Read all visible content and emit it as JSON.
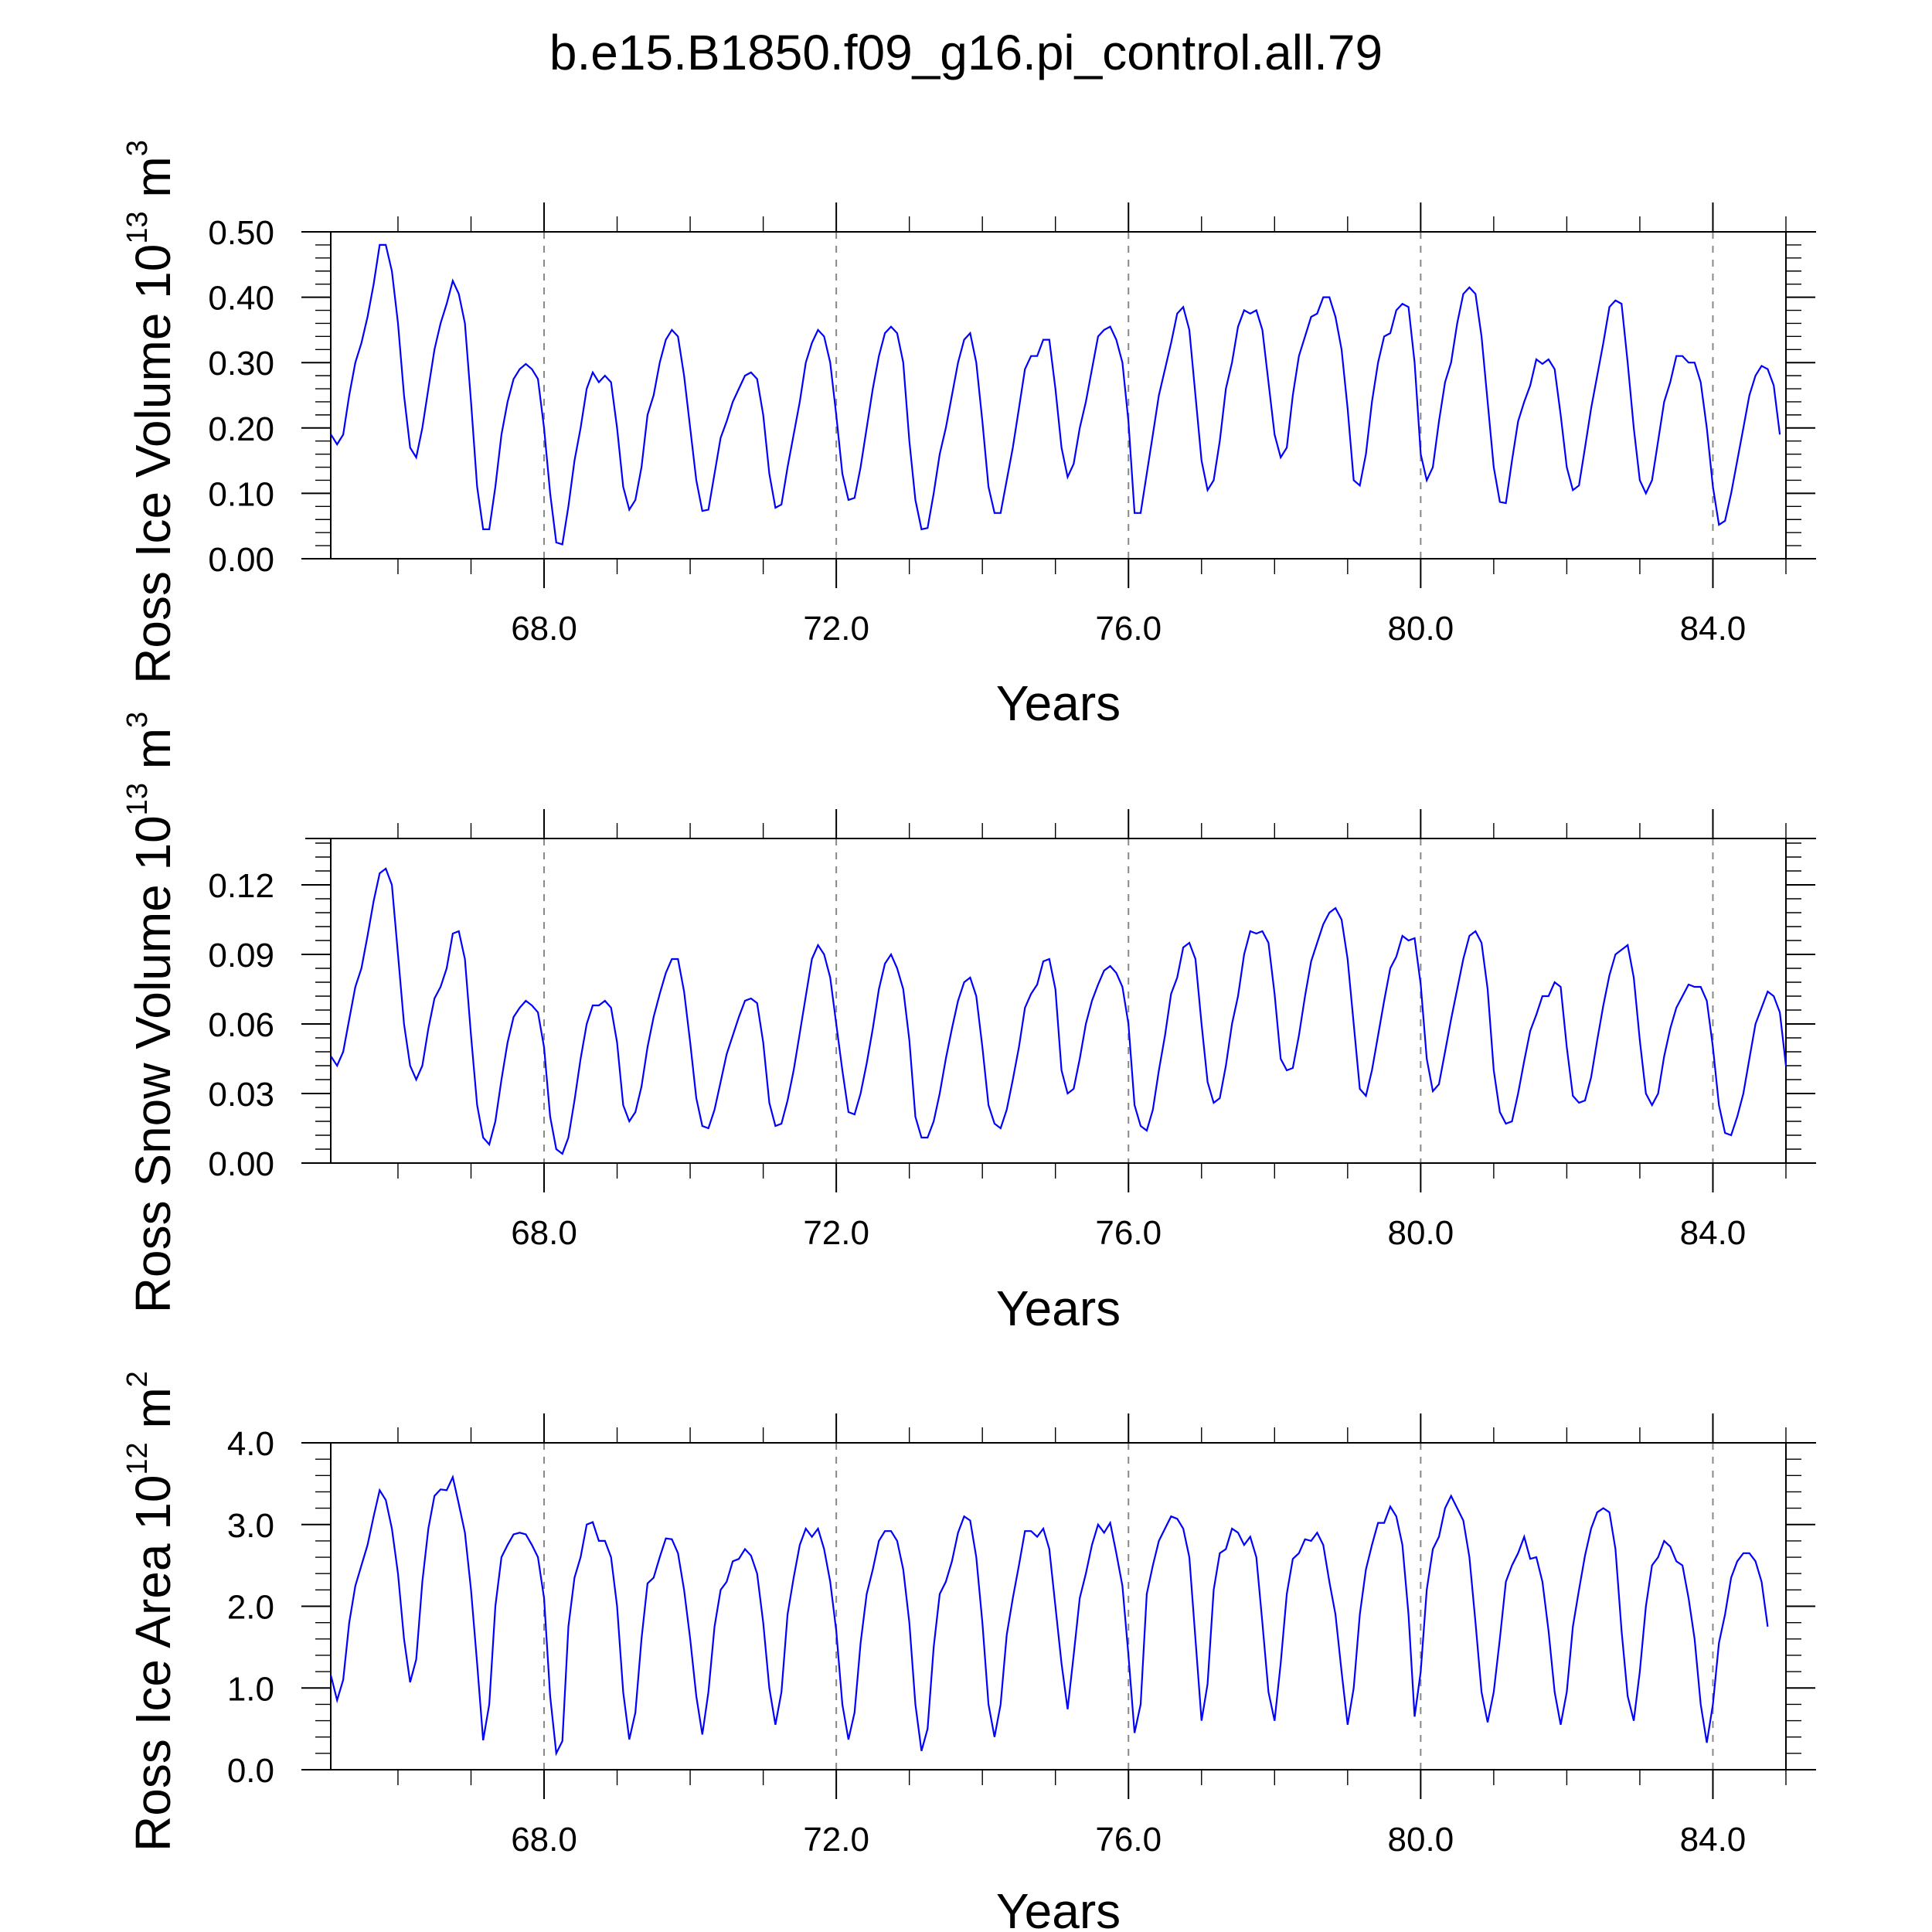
{
  "figure_title": "b.e15.B1850.f09_g16.pi_control.all.79",
  "line_color": "#0000ff",
  "chart_data": [
    {
      "type": "line",
      "xlabel": "Years",
      "ylabel": "Ross Ice Volume 10",
      "ylabel_exp": "13",
      "ylabel_unit": "m",
      "ylabel_unit_exp": "3",
      "xlim": [
        65.08,
        85.0
      ],
      "ylim": [
        0.0,
        0.5
      ],
      "xticks": [
        68,
        72,
        76,
        80,
        84
      ],
      "xtick_labels": [
        "68.0",
        "72.0",
        "76.0",
        "80.0",
        "84.0"
      ],
      "yticks": [
        0,
        0.1,
        0.2,
        0.3,
        0.4,
        0.5
      ],
      "ytick_labels": [
        "0.00",
        "0.10",
        "0.20",
        "0.30",
        "0.40",
        "0.50"
      ],
      "x_start": 65.0833,
      "x_step": 0.0833333,
      "values": [
        0.19,
        0.175,
        0.19,
        0.25,
        0.3,
        0.33,
        0.37,
        0.42,
        0.48,
        0.48,
        0.44,
        0.36,
        0.25,
        0.17,
        0.155,
        0.2,
        0.26,
        0.32,
        0.36,
        0.39,
        0.425,
        0.405,
        0.36,
        0.24,
        0.11,
        0.045,
        0.045,
        0.11,
        0.19,
        0.24,
        0.275,
        0.29,
        0.298,
        0.29,
        0.275,
        0.2,
        0.1,
        0.025,
        0.022,
        0.08,
        0.15,
        0.2,
        0.26,
        0.285,
        0.27,
        0.28,
        0.27,
        0.2,
        0.11,
        0.075,
        0.09,
        0.14,
        0.22,
        0.25,
        0.3,
        0.335,
        0.35,
        0.34,
        0.28,
        0.2,
        0.12,
        0.073,
        0.075,
        0.13,
        0.185,
        0.21,
        0.24,
        0.26,
        0.28,
        0.285,
        0.275,
        0.22,
        0.13,
        0.078,
        0.083,
        0.14,
        0.19,
        0.24,
        0.3,
        0.33,
        0.35,
        0.34,
        0.3,
        0.22,
        0.13,
        0.09,
        0.093,
        0.14,
        0.2,
        0.26,
        0.31,
        0.345,
        0.355,
        0.345,
        0.3,
        0.18,
        0.09,
        0.045,
        0.047,
        0.1,
        0.16,
        0.2,
        0.25,
        0.3,
        0.335,
        0.345,
        0.3,
        0.21,
        0.11,
        0.07,
        0.07,
        0.12,
        0.17,
        0.23,
        0.29,
        0.31,
        0.31,
        0.335,
        0.335,
        0.26,
        0.17,
        0.125,
        0.145,
        0.2,
        0.24,
        0.29,
        0.34,
        0.35,
        0.355,
        0.335,
        0.3,
        0.21,
        0.07,
        0.07,
        0.13,
        0.19,
        0.25,
        0.29,
        0.33,
        0.375,
        0.385,
        0.35,
        0.25,
        0.15,
        0.105,
        0.12,
        0.18,
        0.26,
        0.3,
        0.355,
        0.38,
        0.375,
        0.38,
        0.35,
        0.27,
        0.19,
        0.155,
        0.17,
        0.25,
        0.31,
        0.34,
        0.37,
        0.375,
        0.4,
        0.4,
        0.37,
        0.32,
        0.23,
        0.12,
        0.112,
        0.16,
        0.24,
        0.3,
        0.34,
        0.345,
        0.38,
        0.39,
        0.385,
        0.3,
        0.16,
        0.12,
        0.14,
        0.21,
        0.27,
        0.3,
        0.36,
        0.405,
        0.415,
        0.405,
        0.34,
        0.24,
        0.14,
        0.087,
        0.085,
        0.15,
        0.21,
        0.24,
        0.265,
        0.305,
        0.298,
        0.305,
        0.29,
        0.22,
        0.14,
        0.105,
        0.112,
        0.17,
        0.23,
        0.28,
        0.33,
        0.385,
        0.395,
        0.39,
        0.3,
        0.2,
        0.12,
        0.1,
        0.12,
        0.18,
        0.24,
        0.27,
        0.31,
        0.31,
        0.3,
        0.3,
        0.27,
        0.2,
        0.11,
        0.052,
        0.058,
        0.1,
        0.15,
        0.2,
        0.25,
        0.28,
        0.295,
        0.29,
        0.265,
        0.19
      ]
    },
    {
      "type": "line",
      "xlabel": "Years",
      "ylabel": "Ross Snow Volume 10",
      "ylabel_exp": "13",
      "ylabel_unit": "m",
      "ylabel_unit_exp": "3",
      "xlim": [
        65.08,
        85.0
      ],
      "ylim": [
        0.0,
        0.14
      ],
      "xticks": [
        68,
        72,
        76,
        80,
        84
      ],
      "xtick_labels": [
        "68.0",
        "72.0",
        "76.0",
        "80.0",
        "84.0"
      ],
      "yticks": [
        0,
        0.03,
        0.06,
        0.09,
        0.12
      ],
      "ytick_labels": [
        "0.00",
        "0.03",
        "0.06",
        "0.09",
        "0.12"
      ],
      "x_start": 65.0833,
      "x_step": 0.0833333,
      "values": [
        0.046,
        0.042,
        0.048,
        0.062,
        0.076,
        0.084,
        0.098,
        0.113,
        0.125,
        0.127,
        0.12,
        0.09,
        0.06,
        0.042,
        0.036,
        0.042,
        0.058,
        0.071,
        0.076,
        0.084,
        0.099,
        0.1,
        0.088,
        0.055,
        0.025,
        0.011,
        0.008,
        0.018,
        0.036,
        0.052,
        0.063,
        0.067,
        0.07,
        0.068,
        0.065,
        0.05,
        0.02,
        0.006,
        0.004,
        0.011,
        0.027,
        0.045,
        0.06,
        0.068,
        0.068,
        0.07,
        0.067,
        0.052,
        0.025,
        0.018,
        0.022,
        0.033,
        0.05,
        0.063,
        0.073,
        0.082,
        0.088,
        0.088,
        0.074,
        0.052,
        0.028,
        0.016,
        0.015,
        0.023,
        0.035,
        0.047,
        0.055,
        0.063,
        0.07,
        0.071,
        0.069,
        0.052,
        0.026,
        0.016,
        0.017,
        0.027,
        0.04,
        0.056,
        0.072,
        0.088,
        0.094,
        0.09,
        0.08,
        0.06,
        0.04,
        0.022,
        0.021,
        0.03,
        0.043,
        0.058,
        0.075,
        0.086,
        0.09,
        0.084,
        0.075,
        0.053,
        0.02,
        0.011,
        0.011,
        0.018,
        0.03,
        0.045,
        0.058,
        0.07,
        0.078,
        0.08,
        0.072,
        0.05,
        0.025,
        0.017,
        0.015,
        0.023,
        0.036,
        0.05,
        0.067,
        0.073,
        0.077,
        0.087,
        0.088,
        0.075,
        0.04,
        0.03,
        0.032,
        0.045,
        0.06,
        0.07,
        0.077,
        0.083,
        0.085,
        0.082,
        0.076,
        0.06,
        0.025,
        0.016,
        0.014,
        0.023,
        0.04,
        0.055,
        0.073,
        0.08,
        0.093,
        0.095,
        0.088,
        0.06,
        0.035,
        0.026,
        0.028,
        0.042,
        0.06,
        0.072,
        0.09,
        0.1,
        0.099,
        0.1,
        0.095,
        0.073,
        0.045,
        0.04,
        0.041,
        0.055,
        0.072,
        0.087,
        0.095,
        0.103,
        0.108,
        0.11,
        0.105,
        0.088,
        0.06,
        0.032,
        0.029,
        0.04,
        0.055,
        0.07,
        0.084,
        0.089,
        0.098,
        0.096,
        0.097,
        0.077,
        0.045,
        0.031,
        0.034,
        0.048,
        0.062,
        0.075,
        0.088,
        0.098,
        0.1,
        0.095,
        0.075,
        0.04,
        0.022,
        0.017,
        0.018,
        0.03,
        0.044,
        0.057,
        0.064,
        0.072,
        0.072,
        0.078,
        0.076,
        0.05,
        0.029,
        0.026,
        0.027,
        0.037,
        0.053,
        0.068,
        0.081,
        0.09,
        0.092,
        0.094,
        0.08,
        0.053,
        0.03,
        0.025,
        0.03,
        0.046,
        0.058,
        0.067,
        0.072,
        0.077,
        0.076,
        0.076,
        0.07,
        0.05,
        0.025,
        0.013,
        0.012,
        0.02,
        0.03,
        0.045,
        0.06,
        0.067,
        0.074,
        0.072,
        0.065,
        0.042
      ]
    },
    {
      "type": "line",
      "xlabel": "Years",
      "ylabel": "Ross Ice Area 10",
      "ylabel_exp": "12",
      "ylabel_unit": "m",
      "ylabel_unit_exp": "2",
      "xlim": [
        65.08,
        85.0
      ],
      "ylim": [
        0.0,
        4.0
      ],
      "xticks": [
        68,
        72,
        76,
        80,
        84
      ],
      "xtick_labels": [
        "68.0",
        "72.0",
        "76.0",
        "80.0",
        "84.0"
      ],
      "yticks": [
        0,
        1,
        2,
        3,
        4
      ],
      "ytick_labels": [
        "0.0",
        "1.0",
        "2.0",
        "3.0",
        "4.0"
      ],
      "x_start": 65.0833,
      "x_step": 0.0833333,
      "values": [
        1.15,
        0.85,
        1.1,
        1.8,
        2.25,
        2.5,
        2.75,
        3.1,
        3.42,
        3.3,
        2.95,
        2.4,
        1.6,
        1.07,
        1.35,
        2.3,
        2.95,
        3.35,
        3.43,
        3.42,
        3.58,
        3.25,
        2.9,
        2.2,
        1.3,
        0.36,
        0.8,
        2.0,
        2.6,
        2.75,
        2.88,
        2.9,
        2.88,
        2.75,
        2.6,
        2.1,
        0.9,
        0.2,
        0.35,
        1.75,
        2.35,
        2.6,
        3.0,
        3.03,
        2.8,
        2.8,
        2.6,
        2.0,
        0.95,
        0.37,
        0.7,
        1.6,
        2.28,
        2.35,
        2.6,
        2.83,
        2.82,
        2.65,
        2.2,
        1.6,
        0.9,
        0.43,
        0.95,
        1.75,
        2.2,
        2.3,
        2.55,
        2.58,
        2.7,
        2.62,
        2.4,
        1.8,
        1.0,
        0.55,
        0.95,
        1.9,
        2.35,
        2.75,
        2.95,
        2.85,
        2.95,
        2.7,
        2.3,
        1.7,
        0.8,
        0.37,
        0.7,
        1.55,
        2.15,
        2.45,
        2.8,
        2.92,
        2.92,
        2.8,
        2.45,
        1.8,
        0.8,
        0.23,
        0.5,
        1.5,
        2.15,
        2.3,
        2.55,
        2.9,
        3.1,
        3.05,
        2.6,
        1.8,
        0.8,
        0.4,
        0.8,
        1.65,
        2.1,
        2.5,
        2.92,
        2.92,
        2.85,
        2.95,
        2.7,
        2.0,
        1.3,
        0.74,
        1.4,
        2.1,
        2.4,
        2.75,
        3.0,
        2.9,
        3.02,
        2.65,
        2.25,
        1.4,
        0.45,
        0.8,
        2.15,
        2.5,
        2.8,
        2.95,
        3.1,
        3.07,
        2.95,
        2.6,
        1.6,
        0.6,
        1.05,
        2.2,
        2.65,
        2.7,
        2.95,
        2.9,
        2.75,
        2.85,
        2.6,
        1.8,
        0.95,
        0.6,
        1.3,
        2.15,
        2.58,
        2.65,
        2.82,
        2.8,
        2.9,
        2.75,
        2.3,
        1.9,
        1.2,
        0.55,
        1.0,
        1.9,
        2.45,
        2.75,
        3.02,
        3.02,
        3.22,
        3.1,
        2.75,
        1.9,
        0.65,
        1.2,
        2.2,
        2.7,
        2.85,
        3.2,
        3.35,
        3.2,
        3.05,
        2.6,
        1.8,
        0.95,
        0.58,
        0.95,
        1.6,
        2.3,
        2.5,
        2.65,
        2.85,
        2.58,
        2.6,
        2.3,
        1.7,
        0.95,
        0.55,
        0.95,
        1.75,
        2.2,
        2.62,
        2.95,
        3.15,
        3.2,
        3.15,
        2.7,
        1.7,
        0.9,
        0.6,
        1.2,
        2.0,
        2.5,
        2.6,
        2.8,
        2.73,
        2.55,
        2.5,
        2.1,
        1.6,
        0.8,
        0.33,
        0.8,
        1.55,
        1.9,
        2.35,
        2.55,
        2.65,
        2.65,
        2.55,
        2.3,
        1.75
      ]
    }
  ]
}
